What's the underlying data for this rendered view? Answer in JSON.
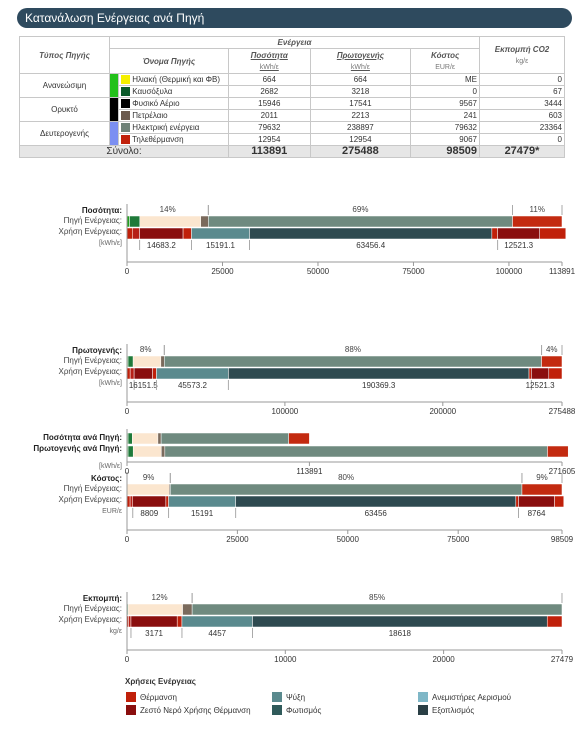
{
  "header": {
    "title": "Κατανάλωση Ενέργειας ανά Πηγή"
  },
  "table": {
    "group_header": "Ενέργεια",
    "emissions_header": "Εκπομπή CO2",
    "columns": [
      "Τύπος Πηγής",
      "Όνομα Πηγής",
      "Ποσότητα",
      "Πρωτογενής",
      "Κόστος"
    ],
    "units": [
      "kWh/ε",
      "kWh/ε",
      "EUR/ε",
      "kg/ε"
    ],
    "groups": [
      {
        "type": "Ανανεώσιμη",
        "color": "#22c11a",
        "rows": [
          {
            "name": "Ηλιακή (Θερμική και ΦΒ)",
            "color": "#f5f000",
            "qty": "664",
            "primary": "664",
            "cost": "ΜΕ",
            "co2": "0"
          },
          {
            "name": "Καυσόξυλα",
            "color": "#0a5a2a",
            "qty": "2682",
            "primary": "3218",
            "cost": "0",
            "co2": "67"
          }
        ]
      },
      {
        "type": "Ορυκτό",
        "color": "#000000",
        "rows": [
          {
            "name": "Φυσικό Αέριο",
            "color": "#000000",
            "qty": "15946",
            "primary": "17541",
            "cost": "9567",
            "co2": "3444"
          },
          {
            "name": "Πετρέλαιο",
            "color": "#6b5a4e",
            "qty": "2011",
            "primary": "2213",
            "cost": "241",
            "co2": "603"
          }
        ]
      },
      {
        "type": "Δευτερογενής",
        "color": "#7b8ff2",
        "rows": [
          {
            "name": "Ηλεκτρική ενέργεια",
            "color": "#6f8278",
            "qty": "79632",
            "primary": "238897",
            "cost": "79632",
            "co2": "23364"
          },
          {
            "name": "Τηλεθέρμανση",
            "color": "#c0200a",
            "qty": "12954",
            "primary": "12954",
            "cost": "9067",
            "co2": "0"
          }
        ]
      }
    ],
    "total": {
      "label": "Σύνολο:",
      "qty": "113891",
      "primary": "275488",
      "cost": "98509",
      "co2": "27479*"
    }
  },
  "chart_data": [
    {
      "type": "bar",
      "title": "Ποσότητα:",
      "row_labels": [
        "Πηγή Ενέργειας:",
        "Χρήση Ενέργειας:"
      ],
      "unit_label": "[kWh/ε]",
      "max": 113891,
      "ticks": [
        0,
        25000,
        50000,
        75000,
        100000,
        113891
      ],
      "source_segments": [
        664,
        2682,
        15946,
        2011,
        79632,
        12954
      ],
      "source_pct": [
        "14%",
        "69%",
        "11%"
      ],
      "use_segments": [
        1500,
        1800,
        11383.2,
        2200,
        15191.1,
        63456.4,
        1500,
        11021.3,
        6837.8
      ],
      "use_labels": [
        "14683.2",
        "15191.1",
        "63456.4",
        "12521.3"
      ]
    },
    {
      "type": "bar",
      "title": "Πρωτογενής:",
      "row_labels": [
        "Πηγή Ενέργειας:",
        "Χρήση Ενέργειας:"
      ],
      "unit_label": "[kWh/ε]",
      "max": 275488,
      "ticks": [
        0,
        100000,
        200000,
        275488
      ],
      "source_segments": [
        664,
        3218,
        17541,
        2213,
        238897,
        12954
      ],
      "source_pct": [
        "8%",
        "88%",
        "4%"
      ],
      "use_segments": [
        2000,
        2500,
        11651.5,
        2500,
        45573.2,
        190369.3,
        1500,
        11021.3,
        8372.7
      ],
      "use_labels": [
        "16151.5",
        "45573.2",
        "190369.3",
        "12521.3"
      ]
    },
    {
      "type": "bar",
      "title": "",
      "row_labels": [
        "Ποσότητα ανά Πηγή:",
        "Πρωτογενής ανά Πηγή:"
      ],
      "unit_label": "[kWh/ε]",
      "max": 271605,
      "ticks": [
        0,
        113891,
        271605
      ],
      "qty_segments": [
        664,
        2682,
        15946,
        2011,
        79632,
        12954
      ],
      "primary_segments": [
        664,
        3218,
        17541,
        2213,
        238897,
        12954
      ]
    },
    {
      "type": "bar",
      "title": "Κόστος:",
      "row_labels": [
        "Πηγή Ενέργειας:",
        "Χρήση Ενέργειας:"
      ],
      "unit_label": "EUR/ε",
      "max": 98509,
      "ticks": [
        0,
        25000,
        50000,
        75000,
        98509
      ],
      "source_segments": [
        0,
        0,
        9567,
        241,
        79632,
        9067
      ],
      "source_pct": [
        "9%",
        "80%",
        "9%"
      ],
      "use_segments": [
        700,
        600,
        7509,
        600,
        15191,
        63456,
        600,
        8164,
        2089
      ],
      "use_labels": [
        "8809",
        "15191",
        "63456",
        "8764"
      ]
    },
    {
      "type": "bar",
      "title": "Εκπομπή:",
      "row_labels": [
        "Πηγή Ενέργειας:",
        "Χρήση Ενέργειας:"
      ],
      "unit_label": "kg/ε",
      "max": 27479,
      "ticks": [
        0,
        10000,
        20000,
        27479
      ],
      "source_segments": [
        0,
        67,
        3444,
        603,
        23364,
        0
      ],
      "source_pct": [
        "12%",
        "85%"
      ],
      "use_segments": [
        100,
        150,
        2921,
        300,
        4457,
        18618,
        0,
        0,
        933
      ],
      "use_labels": [
        "3171",
        "4457",
        "18618"
      ]
    }
  ],
  "legend": {
    "title": "Χρήσεις Ενέργειας",
    "items": [
      {
        "label": "Θέρμανση",
        "color": "#c0200a"
      },
      {
        "label": "Ψύξη",
        "color": "#5a8a8e"
      },
      {
        "label": "Ανεμιστήρες Αερισμού",
        "color": "#7fb7c7"
      },
      {
        "label": "Ζεστό Νερό Χρήσης Θέρμανση",
        "color": "#8a0e0e"
      },
      {
        "label": "Φωτισμός",
        "color": "#2f5a5a"
      },
      {
        "label": "Εξοπλισμός",
        "color": "#2a3f45"
      }
    ]
  }
}
